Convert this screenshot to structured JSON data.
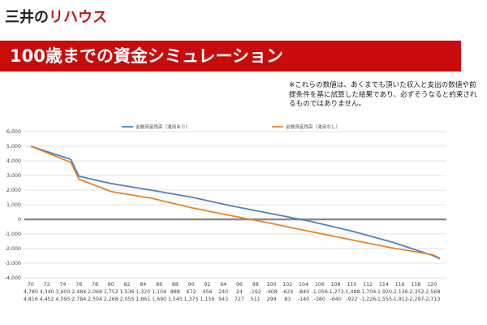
{
  "logo": {
    "part1": "三井の",
    "part2": "リハウス"
  },
  "banner": {
    "title": "100歳までの資金シミュレーション"
  },
  "note": {
    "text": "※これらの数値は、あくまでも頂いた収入と支出の数値や前提条件を基に試算した結果であり、必ずそうなると約束されるものではありません。"
  },
  "colors": {
    "series1": "#4f81bd",
    "series2": "#e8832a",
    "banner": "#c90b0b"
  },
  "chart_data": {
    "type": "line",
    "legend_position": "top",
    "ylim": [
      -4000,
      6000
    ],
    "y_ticks": [
      6000,
      5000,
      4000,
      3000,
      2000,
      1000,
      0,
      -1000,
      -2000,
      -3000,
      -4000
    ],
    "y_tick_labels": [
      "6,000",
      "5,000",
      "4,000",
      "3,000",
      "2,000",
      "1,000",
      "0",
      "-1,000",
      "-2,000",
      "-3,000",
      "-4,000"
    ],
    "x": [
      70,
      72,
      74,
      76,
      78,
      80,
      82,
      84,
      86,
      88,
      90,
      92,
      94,
      96,
      98,
      100,
      102,
      104,
      106,
      108,
      110,
      112,
      114,
      116,
      118,
      120
    ],
    "series": [
      {
        "name": "金融資産残高（運用あり）",
        "values": [
          4780,
          4340,
          3900,
          2484,
          2068,
          1752,
          1536,
          1320,
          1104,
          888,
          672,
          456,
          240,
          24,
          -192,
          -408,
          -624,
          -840,
          -1056,
          -1272,
          -1488,
          -1704,
          -1920,
          -2136,
          -2352,
          -2568
        ],
        "value_labels": [
          "4,780",
          "4,340",
          "3,900",
          "2,484",
          "2,068",
          "1,752",
          "1,536",
          "1,320",
          "1,104",
          "888",
          "672",
          "456",
          "240",
          "24",
          "-192",
          "-408",
          "-624",
          "-840",
          "-1,056",
          "-1,272",
          "-1,488",
          "-1,704",
          "-1,920",
          "-2,136",
          "-2,352",
          "-2,568"
        ]
      },
      {
        "name": "金融資産残高（運用なし）",
        "values": [
          4816,
          4452,
          4095,
          2784,
          2504,
          2268,
          2055,
          1861,
          1690,
          1545,
          1375,
          1159,
          943,
          727,
          511,
          299,
          83,
          -140,
          -380,
          -640,
          -922,
          -1226,
          -1555,
          -1912,
          -2297,
          -2713
        ],
        "value_labels": [
          "4,816",
          "4,452",
          "4,095",
          "2,784",
          "2,504",
          "2,268",
          "2,055",
          "1,861",
          "1,690",
          "1,545",
          "1,375",
          "1,159",
          "943",
          "727",
          "511",
          "299",
          "83",
          "-140",
          "-380",
          "-640",
          "-922",
          "-1,226",
          "-1,555",
          "-1,912",
          "-2,297",
          "-2,713"
        ]
      }
    ],
    "line_curves": [
      {
        "series_index": 0,
        "points": [
          [
            70,
            5000
          ],
          [
            75,
            4100
          ],
          [
            76,
            2950
          ],
          [
            80,
            2450
          ],
          [
            85,
            2000
          ],
          [
            90,
            1520
          ],
          [
            95,
            920
          ],
          [
            100,
            390
          ],
          [
            105,
            -150
          ],
          [
            110,
            -800
          ],
          [
            115,
            -1550
          ],
          [
            120,
            -2450
          ],
          [
            121,
            -2700
          ]
        ]
      },
      {
        "series_index": 1,
        "points": [
          [
            70,
            5000
          ],
          [
            75,
            3900
          ],
          [
            76,
            2750
          ],
          [
            80,
            1900
          ],
          [
            85,
            1450
          ],
          [
            90,
            800
          ],
          [
            95,
            250
          ],
          [
            100,
            -280
          ],
          [
            105,
            -850
          ],
          [
            110,
            -1400
          ],
          [
            115,
            -1950
          ],
          [
            120,
            -2400
          ],
          [
            121,
            -2650
          ]
        ]
      }
    ]
  }
}
